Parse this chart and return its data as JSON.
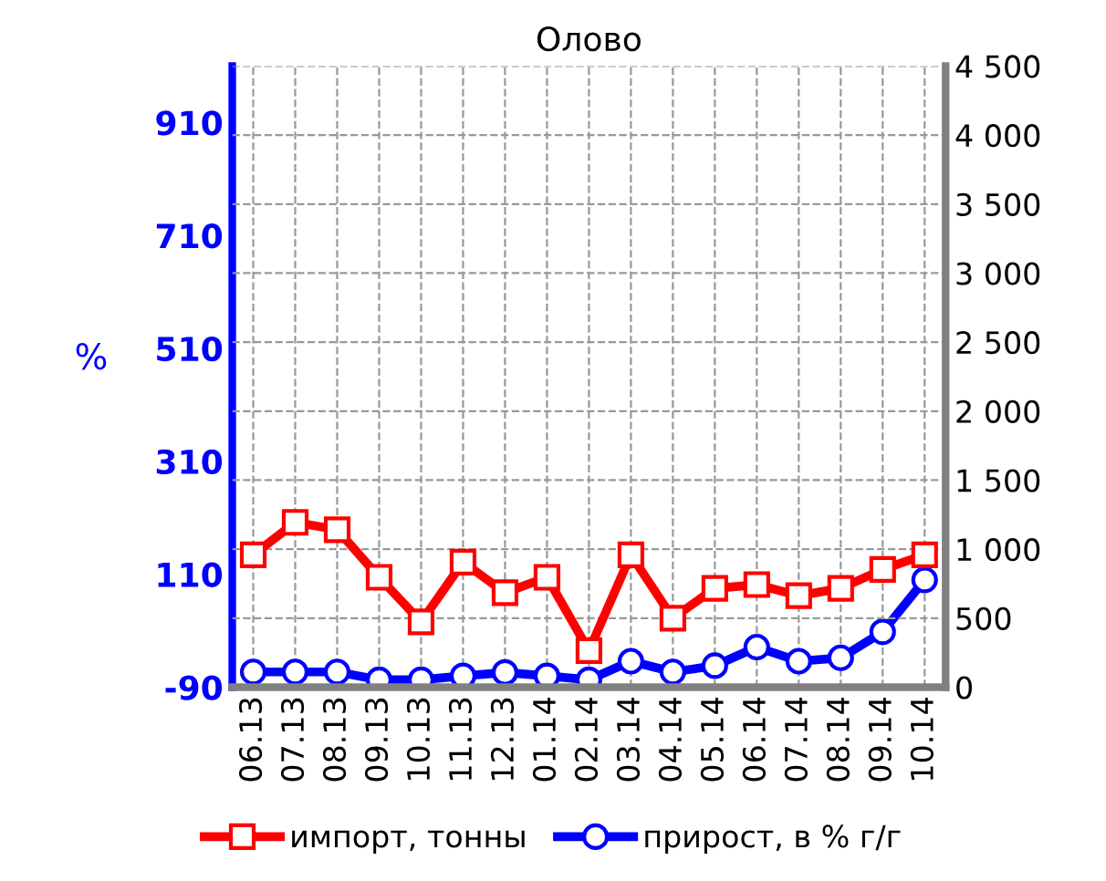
{
  "chart_data": {
    "type": "line",
    "title": "Олово",
    "ylabel": "%",
    "categories": [
      "06.13",
      "07.13",
      "08.13",
      "09.13",
      "10.13",
      "11.13",
      "12.13",
      "01.14",
      "02.14",
      "03.14",
      "04.14",
      "05.14",
      "06.14",
      "07.14",
      "08.14",
      "09.14",
      "10.14"
    ],
    "series": [
      {
        "name": "импорт, тонны",
        "color": "#ff0000",
        "axis": "y2",
        "marker": "square",
        "values": [
          959,
          1194,
          1141,
          796,
          473,
          906,
          685,
          796,
          265,
          959,
          500,
          716,
          743,
          663,
          716,
          853,
          959
        ]
      },
      {
        "name": "прирост, в % г/г",
        "color": "#0000ff",
        "marker": "circle",
        "values": [
          -63,
          -63,
          -63,
          -77,
          -77,
          -70,
          -64,
          -70,
          -77,
          -44,
          -63,
          -52,
          -19,
          -44,
          -38,
          8,
          100
        ]
      }
    ],
    "ylim": [
      -90,
      1010
    ],
    "yticks": [
      -90,
      110,
      310,
      510,
      710,
      910
    ],
    "y2lim": [
      0,
      4500
    ],
    "y2ticks": [
      0,
      500,
      {
        "value": 1000,
        "label": "1 000"
      },
      {
        "value": 1500,
        "label": "1 500"
      },
      {
        "value": 2000,
        "label": "2 000"
      },
      {
        "value": 2500,
        "label": "2 500"
      },
      {
        "value": 3000,
        "label": "3 000"
      },
      {
        "value": 3500,
        "label": "3 500"
      },
      {
        "value": 4000,
        "label": "4 000"
      },
      {
        "value": 4500,
        "label": "4 500"
      }
    ],
    "grid": true,
    "legend": "bottom",
    "line_style": "solid"
  }
}
